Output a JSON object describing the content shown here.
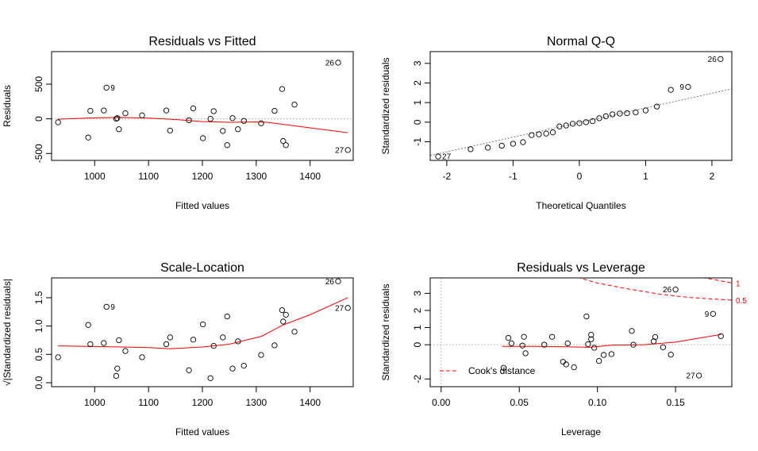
{
  "chart_data": [
    {
      "type": "scatter",
      "title": "Residuals vs Fitted",
      "xlabel": "Fitted values",
      "ylabel": "Residuals",
      "xlim": [
        920,
        1480
      ],
      "ylim": [
        -600,
        970
      ],
      "xticks": [
        1000,
        1100,
        1200,
        1300,
        1400
      ],
      "yticks": [
        -500,
        0,
        500
      ],
      "ytick_labels": [
        "-500",
        "0",
        "500"
      ],
      "hline": 0,
      "points": [
        {
          "x": 932,
          "y": -50
        },
        {
          "x": 988,
          "y": -270
        },
        {
          "x": 992,
          "y": 115
        },
        {
          "x": 1017,
          "y": 120
        },
        {
          "x": 1022,
          "y": 450,
          "label": "9"
        },
        {
          "x": 1040,
          "y": 0
        },
        {
          "x": 1042,
          "y": 10
        },
        {
          "x": 1045,
          "y": -150
        },
        {
          "x": 1057,
          "y": 80
        },
        {
          "x": 1088,
          "y": 50
        },
        {
          "x": 1133,
          "y": 120
        },
        {
          "x": 1140,
          "y": -170
        },
        {
          "x": 1175,
          "y": -20
        },
        {
          "x": 1183,
          "y": 150
        },
        {
          "x": 1201,
          "y": -280
        },
        {
          "x": 1215,
          "y": 0
        },
        {
          "x": 1221,
          "y": 110
        },
        {
          "x": 1238,
          "y": -175
        },
        {
          "x": 1246,
          "y": -380
        },
        {
          "x": 1256,
          "y": 10
        },
        {
          "x": 1266,
          "y": -150
        },
        {
          "x": 1277,
          "y": -30
        },
        {
          "x": 1309,
          "y": -65
        },
        {
          "x": 1334,
          "y": 115
        },
        {
          "x": 1348,
          "y": 430
        },
        {
          "x": 1350,
          "y": -320
        },
        {
          "x": 1355,
          "y": -380
        },
        {
          "x": 1371,
          "y": 205
        },
        {
          "x": 1452,
          "y": 810,
          "label": "26"
        },
        {
          "x": 1470,
          "y": -450,
          "label": "27"
        }
      ],
      "smooth": {
        "x": [
          932,
          1000,
          1050,
          1100,
          1150,
          1200,
          1250,
          1300,
          1320,
          1350,
          1400,
          1470
        ],
        "y": [
          -5,
          15,
          20,
          10,
          -10,
          -40,
          -50,
          -45,
          -50,
          -80,
          -130,
          -200
        ]
      }
    },
    {
      "type": "scatter",
      "title": "Normal Q-Q",
      "xlabel": "Theoretical Quantiles",
      "ylabel": "Standardized residuals",
      "xlim": [
        -2.25,
        2.3
      ],
      "ylim": [
        -1.95,
        3.6
      ],
      "xticks": [
        -2,
        -1,
        0,
        1,
        2
      ],
      "yticks": [
        -1,
        0,
        1,
        2,
        3
      ],
      "ytick_labels": [
        "-1",
        "0",
        "1",
        "2",
        "3"
      ],
      "reference_line": {
        "x": [
          -2.25,
          2.3
        ],
        "y": [
          -1.7,
          1.7
        ]
      },
      "points": [
        {
          "x": -2.13,
          "y": -1.75,
          "label": "27"
        },
        {
          "x": -1.64,
          "y": -1.38
        },
        {
          "x": -1.38,
          "y": -1.3
        },
        {
          "x": -1.17,
          "y": -1.2
        },
        {
          "x": -1.0,
          "y": -1.1
        },
        {
          "x": -0.85,
          "y": -1.02
        },
        {
          "x": -0.72,
          "y": -0.66
        },
        {
          "x": -0.61,
          "y": -0.62
        },
        {
          "x": -0.5,
          "y": -0.58
        },
        {
          "x": -0.4,
          "y": -0.52
        },
        {
          "x": -0.3,
          "y": -0.22
        },
        {
          "x": -0.2,
          "y": -0.17
        },
        {
          "x": -0.1,
          "y": -0.08
        },
        {
          "x": 0.0,
          "y": -0.05
        },
        {
          "x": 0.1,
          "y": 0.0
        },
        {
          "x": 0.2,
          "y": 0.05
        },
        {
          "x": 0.3,
          "y": 0.2
        },
        {
          "x": 0.4,
          "y": 0.3
        },
        {
          "x": 0.5,
          "y": 0.4
        },
        {
          "x": 0.61,
          "y": 0.44
        },
        {
          "x": 0.72,
          "y": 0.46
        },
        {
          "x": 0.85,
          "y": 0.5
        },
        {
          "x": 1.0,
          "y": 0.6
        },
        {
          "x": 1.17,
          "y": 0.8
        },
        {
          "x": 1.38,
          "y": 1.65
        },
        {
          "x": 1.64,
          "y": 1.8,
          "label": "9"
        },
        {
          "x": 2.13,
          "y": 3.22,
          "label": "26"
        }
      ]
    },
    {
      "type": "scatter",
      "title": "Scale-Location",
      "xlabel": "Fitted values",
      "ylabel": "√|Standardized residuals|",
      "xlim": [
        920,
        1480
      ],
      "ylim": [
        -0.07,
        1.85
      ],
      "xticks": [
        1000,
        1100,
        1200,
        1300,
        1400
      ],
      "yticks": [
        0.0,
        0.5,
        1.0,
        1.5
      ],
      "ytick_labels": [
        "0.0",
        "0.5",
        "1.0",
        "1.5"
      ],
      "points": [
        {
          "x": 932,
          "y": 0.45
        },
        {
          "x": 988,
          "y": 1.02
        },
        {
          "x": 992,
          "y": 0.68
        },
        {
          "x": 1017,
          "y": 0.7
        },
        {
          "x": 1022,
          "y": 1.34,
          "label": "9"
        },
        {
          "x": 1040,
          "y": 0.12
        },
        {
          "x": 1042,
          "y": 0.25
        },
        {
          "x": 1045,
          "y": 0.75
        },
        {
          "x": 1057,
          "y": 0.56
        },
        {
          "x": 1088,
          "y": 0.45
        },
        {
          "x": 1133,
          "y": 0.68
        },
        {
          "x": 1140,
          "y": 0.8
        },
        {
          "x": 1175,
          "y": 0.22
        },
        {
          "x": 1183,
          "y": 0.76
        },
        {
          "x": 1201,
          "y": 1.03
        },
        {
          "x": 1215,
          "y": 0.08
        },
        {
          "x": 1221,
          "y": 0.65
        },
        {
          "x": 1238,
          "y": 0.8
        },
        {
          "x": 1246,
          "y": 1.17
        },
        {
          "x": 1256,
          "y": 0.25
        },
        {
          "x": 1266,
          "y": 0.73
        },
        {
          "x": 1277,
          "y": 0.3
        },
        {
          "x": 1309,
          "y": 0.49
        },
        {
          "x": 1334,
          "y": 0.66
        },
        {
          "x": 1348,
          "y": 1.28
        },
        {
          "x": 1350,
          "y": 1.08
        },
        {
          "x": 1355,
          "y": 1.2
        },
        {
          "x": 1371,
          "y": 0.9
        },
        {
          "x": 1452,
          "y": 1.79,
          "label": "26"
        },
        {
          "x": 1470,
          "y": 1.32,
          "label": "27"
        }
      ],
      "smooth": {
        "x": [
          932,
          1000,
          1050,
          1100,
          1140,
          1200,
          1250,
          1310,
          1350,
          1400,
          1470
        ],
        "y": [
          0.65,
          0.64,
          0.63,
          0.62,
          0.6,
          0.63,
          0.68,
          0.82,
          1.02,
          1.2,
          1.5
        ]
      }
    },
    {
      "type": "scatter",
      "title": "Residuals vs Leverage",
      "xlabel": "Leverage",
      "ylabel": "Standardized residuals",
      "xlim": [
        -0.007,
        0.186
      ],
      "ylim": [
        -2.45,
        3.9
      ],
      "xticks": [
        0.0,
        0.05,
        0.1,
        0.15
      ],
      "xtick_labels": [
        "0.00",
        "0.05",
        "0.10",
        "0.15"
      ],
      "yticks": [
        -2,
        0,
        1,
        2,
        3
      ],
      "ytick_labels": [
        "-2",
        "0",
        "1",
        "2",
        "3"
      ],
      "hline": 0,
      "vline": 0,
      "points": [
        {
          "x": 0.04,
          "y": -1.35
        },
        {
          "x": 0.043,
          "y": 0.4
        },
        {
          "x": 0.045,
          "y": 0.08
        },
        {
          "x": 0.052,
          "y": -0.05
        },
        {
          "x": 0.053,
          "y": 0.46
        },
        {
          "x": 0.054,
          "y": -0.5
        },
        {
          "x": 0.066,
          "y": 0.0
        },
        {
          "x": 0.071,
          "y": 0.46
        },
        {
          "x": 0.078,
          "y": -1.0
        },
        {
          "x": 0.08,
          "y": -1.15
        },
        {
          "x": 0.081,
          "y": 0.08
        },
        {
          "x": 0.085,
          "y": -1.32
        },
        {
          "x": 0.093,
          "y": 1.65
        },
        {
          "x": 0.094,
          "y": 0.03
        },
        {
          "x": 0.096,
          "y": 0.58
        },
        {
          "x": 0.096,
          "y": 0.32
        },
        {
          "x": 0.098,
          "y": -0.18
        },
        {
          "x": 0.101,
          "y": -0.95
        },
        {
          "x": 0.104,
          "y": -0.6
        },
        {
          "x": 0.109,
          "y": -0.55
        },
        {
          "x": 0.122,
          "y": 0.8
        },
        {
          "x": 0.123,
          "y": 0.0
        },
        {
          "x": 0.136,
          "y": 0.2
        },
        {
          "x": 0.137,
          "y": 0.45
        },
        {
          "x": 0.142,
          "y": -0.15
        },
        {
          "x": 0.147,
          "y": -0.58
        },
        {
          "x": 0.15,
          "y": 3.22,
          "label": "26"
        },
        {
          "x": 0.165,
          "y": -1.8,
          "label": "27"
        },
        {
          "x": 0.174,
          "y": 1.8,
          "label": "9"
        },
        {
          "x": 0.179,
          "y": 0.5
        }
      ],
      "smooth": {
        "x": [
          0.039,
          0.06,
          0.08,
          0.095,
          0.11,
          0.13,
          0.15,
          0.179
        ],
        "y": [
          -0.1,
          -0.1,
          -0.12,
          -0.15,
          -0.02,
          0.0,
          0.15,
          0.6
        ]
      },
      "cooks_distance": [
        {
          "level": "1",
          "x": [
            0.155,
            0.165,
            0.175,
            0.186
          ],
          "y": [
            4.1,
            3.95,
            3.8,
            3.6
          ]
        },
        {
          "level": "0.5",
          "x": [
            0.087,
            0.1,
            0.12,
            0.14,
            0.16,
            0.186
          ],
          "y": [
            3.95,
            3.6,
            3.25,
            2.95,
            2.75,
            2.6
          ]
        }
      ],
      "legend": {
        "label": "Cook's distance",
        "position": "bottom-left"
      }
    }
  ]
}
